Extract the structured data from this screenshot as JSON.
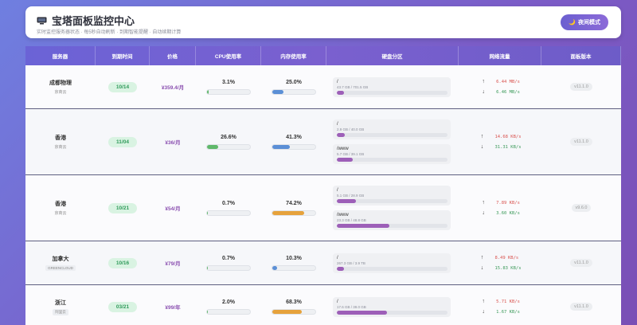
{
  "header": {
    "title": "宝塔面板监控中心",
    "subtitle": "实时监控服务器状态 · 每5秒自动刷新 · 到期智能提醒 · 自动续期计算",
    "mode_button": "夜间模式",
    "mode_icon_char": "🌙"
  },
  "columns": [
    "服务器",
    "到期时间",
    "价格",
    "CPU使用率",
    "内存使用率",
    "硬盘分区",
    "网络流量",
    "面板版本"
  ],
  "colors": {
    "cpu": "#5fb86a",
    "memory_low": "#5b8fd6",
    "memory_high": "#e6a23c",
    "disk": "#9d5fb8"
  },
  "rows": [
    {
      "location": "成都物理",
      "sub": "京商云",
      "sub_style": "text",
      "expire": "10/14",
      "price": "¥359.4/月",
      "cpu": {
        "text": "3.1%",
        "value": 3.1
      },
      "mem": {
        "text": "25.0%",
        "value": 25.0,
        "color": "#5b8fd6"
      },
      "disks": [
        {
          "path": "/",
          "info": "43.7 GB / 701.5 GB",
          "value": 6.2
        }
      ],
      "net": {
        "up": "6.44 MB/s",
        "down": "6.46 MB/s"
      },
      "version": "v11.1.0",
      "height": 55
    },
    {
      "location": "香港",
      "sub": "京商云",
      "sub_style": "text",
      "expire": "11/04",
      "price": "¥36/月",
      "cpu": {
        "text": "26.6%",
        "value": 26.6
      },
      "mem": {
        "text": "41.3%",
        "value": 41.3,
        "color": "#5b8fd6"
      },
      "disks": [
        {
          "path": "/",
          "info": "2.9 GB / 40.0 GB",
          "value": 7.3
        },
        {
          "path": "/www",
          "info": "5.7 GB / 39.1 GB",
          "value": 14.6
        }
      ],
      "net": {
        "up": "14.68 KB/s",
        "down": "31.31 KB/s"
      },
      "version": "v11.1.0",
      "height": 83
    },
    {
      "location": "香港",
      "sub": "京商云",
      "sub_style": "text",
      "expire": "10/21",
      "price": "¥54/月",
      "cpu": {
        "text": "0.7%",
        "value": 0.7
      },
      "mem": {
        "text": "74.2%",
        "value": 74.2,
        "color": "#e6a23c"
      },
      "disks": [
        {
          "path": "/",
          "info": "5.1 GB / 28.9 GB",
          "value": 17.6
        },
        {
          "path": "/www",
          "info": "23.3 GB / 48.8 GB",
          "value": 47.7
        }
      ],
      "net": {
        "up": "7.89 KB/s",
        "down": "3.60 KB/s"
      },
      "version": "v9.6.0",
      "height": 83
    },
    {
      "location": "加拿大",
      "sub": "GREENCLOUD",
      "sub_style": "badge",
      "expire": "10/16",
      "price": "¥79/月",
      "cpu": {
        "text": "0.7%",
        "value": 0.7
      },
      "mem": {
        "text": "10.3%",
        "value": 10.3,
        "color": "#5b8fd6"
      },
      "disks": [
        {
          "path": "/",
          "info": "267.3 GB / 3.9 TB",
          "value": 6.7
        }
      ],
      "net": {
        "up": "8.49 KB/s",
        "down": "15.83 KB/s"
      },
      "version": "v11.1.0",
      "height": 55
    },
    {
      "location": "浙江",
      "sub": "阿里云",
      "sub_style": "badge",
      "expire": "03/21",
      "price": "¥99/年",
      "cpu": {
        "text": "2.0%",
        "value": 2.0
      },
      "mem": {
        "text": "68.3%",
        "value": 68.3,
        "color": "#e6a23c"
      },
      "disks": [
        {
          "path": "/",
          "info": "17.6 GB / 39.0 GB",
          "value": 45.1
        }
      ],
      "net": {
        "up": "5.71 KB/s",
        "down": "1.67 KB/s"
      },
      "version": "v11.1.0",
      "height": 55
    }
  ]
}
